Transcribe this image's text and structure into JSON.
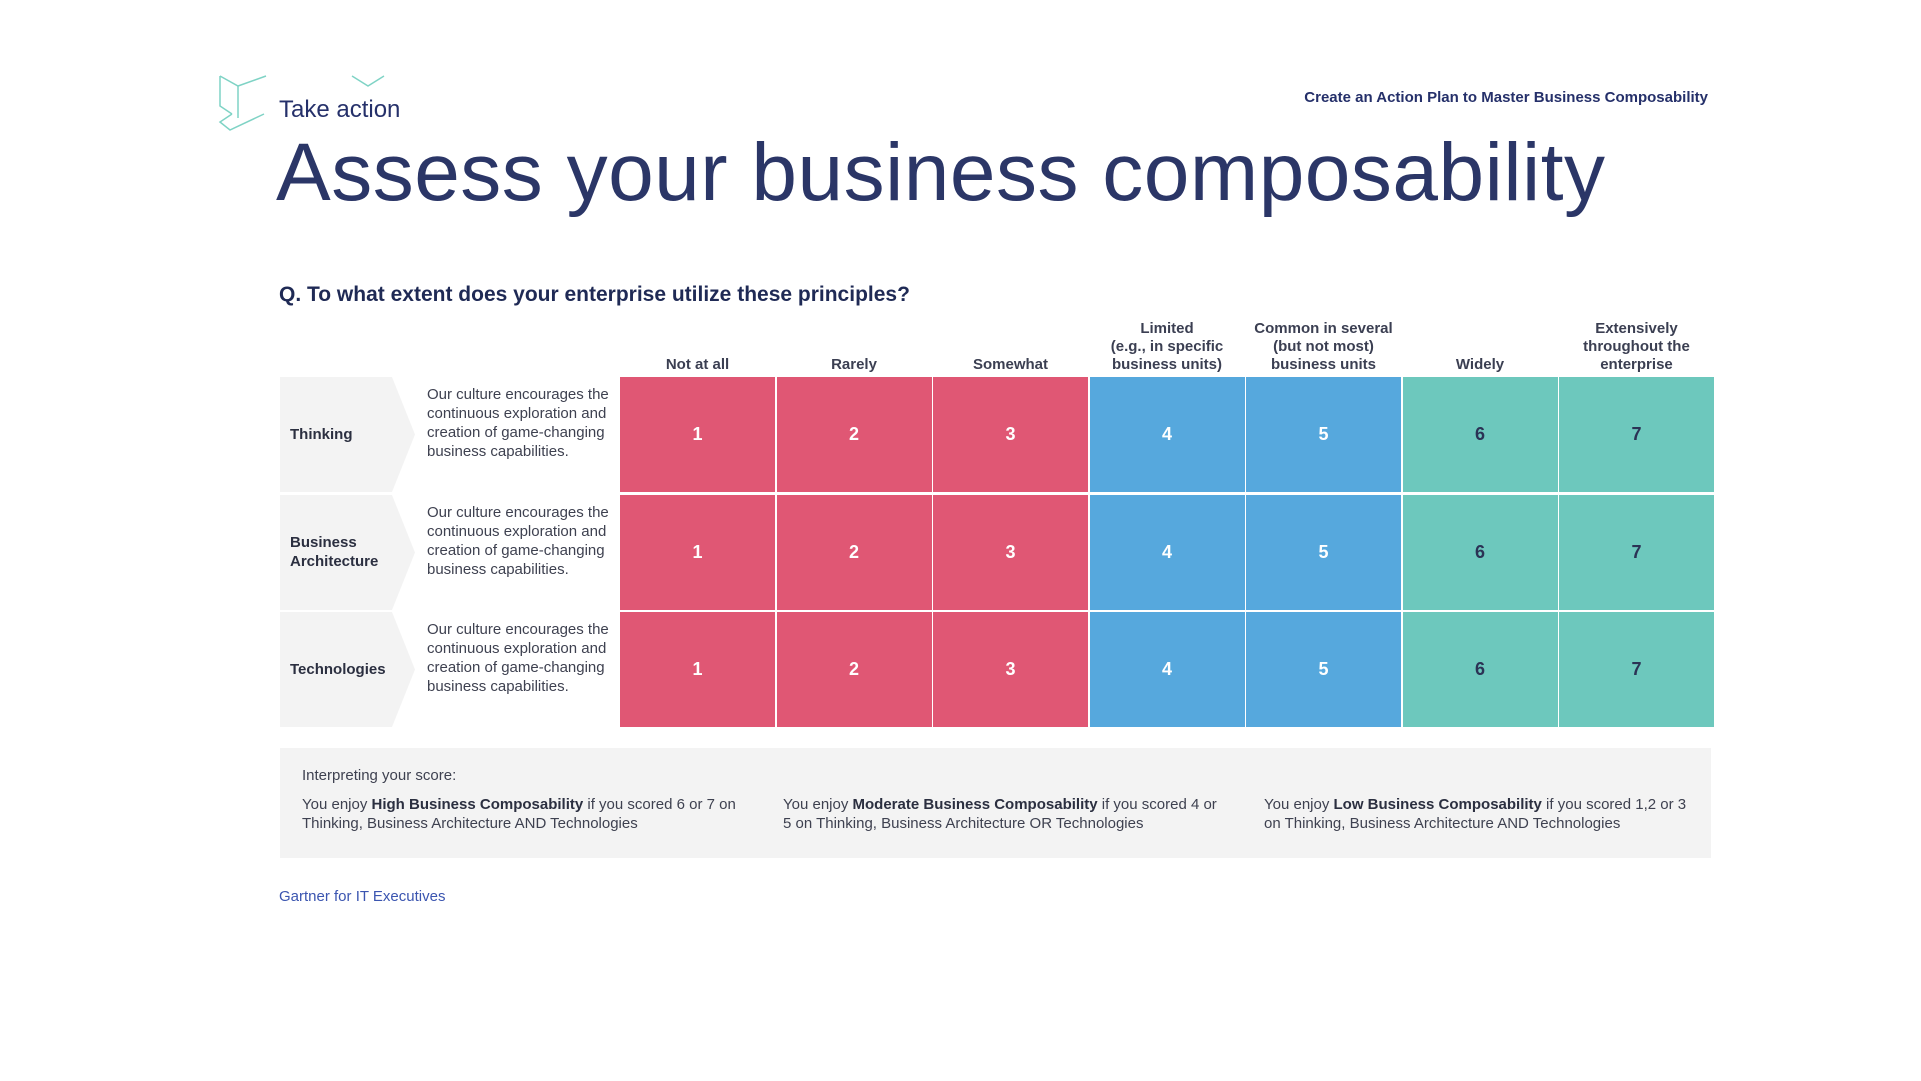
{
  "header": {
    "section_label": "Take action",
    "doc_title": "Create an Action Plan to Master Business Composability",
    "page_title": "Assess your business composability"
  },
  "question": "Q. To what extent does your enterprise utilize these principles?",
  "columns": [
    {
      "label": "Not at all",
      "value": "1",
      "band": "low"
    },
    {
      "label": "Rarely",
      "value": "2",
      "band": "low"
    },
    {
      "label": "Somewhat",
      "value": "3",
      "band": "low"
    },
    {
      "label": "Limited\n(e.g., in specific\nbusiness units)",
      "value": "4",
      "band": "moderate"
    },
    {
      "label": "Common in several\n(but not most)\nbusiness units",
      "value": "5",
      "band": "moderate"
    },
    {
      "label": "Widely",
      "value": "6",
      "band": "high"
    },
    {
      "label": "Extensively\nthroughout the\nenterprise",
      "value": "7",
      "band": "high"
    }
  ],
  "rows": [
    {
      "label": "Thinking",
      "description": "Our culture encourages the continuous exploration and creation of game-changing business capabilities."
    },
    {
      "label": "Business Architecture",
      "description": "Our culture encourages the continuous exploration and creation of game-changing business capabilities."
    },
    {
      "label": "Technologies",
      "description": "Our culture encourages the continuous exploration and creation of game-changing business capabilities."
    }
  ],
  "interpretation": {
    "heading": "Interpreting your score:",
    "items": [
      {
        "prefix": "You enjoy ",
        "level": "High Business Composability",
        "suffix": " if you scored 6 or 7 on Thinking, Business Architecture AND Technologies"
      },
      {
        "prefix": "You enjoy ",
        "level": "Moderate Business Composability",
        "suffix": " if you scored 4 or 5 on Thinking, Business Architecture OR Technologies"
      },
      {
        "prefix": "You enjoy ",
        "level": "Low Business Composability",
        "suffix": " if you scored 1,2 or 3 on Thinking, Business Architecture AND Technologies"
      }
    ]
  },
  "footer": {
    "link_text": "Gartner for IT Executives"
  },
  "colors": {
    "low": "#e05774",
    "moderate": "#56a8dd",
    "high": "#6dc8bd",
    "low_text": "#ffffff",
    "moderate_text": "#ffffff",
    "high_text": "#2b3355",
    "logo_stroke": "#7fd3c5",
    "row_label_bg": "#f3f3f3"
  }
}
